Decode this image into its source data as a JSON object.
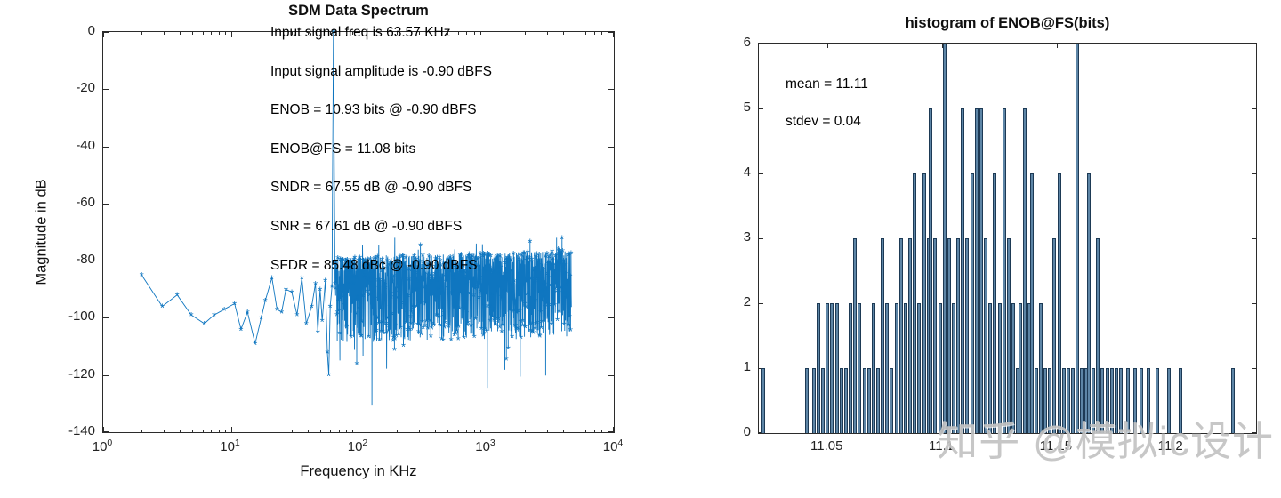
{
  "watermark": {
    "text": "知乎 @模拟ic设计"
  },
  "colors": {
    "spectrum_line": "#0f76c0",
    "hist_fill": "#5d85a6",
    "hist_edge": "#1d3a55",
    "axis": "#2b2b2b",
    "watermark": "#c3c3c3"
  },
  "chart_data": [
    {
      "type": "line",
      "title": "SDM Data Spectrum",
      "xlabel": "Frequency in KHz",
      "ylabel": "Magnitude in dB",
      "x_scale": "log",
      "xlim_khz": [
        1,
        10000
      ],
      "ylim_db": [
        -140,
        0
      ],
      "xticks_pow10_exponents": [
        0,
        1,
        2,
        3,
        4
      ],
      "yticks_db": [
        0,
        -20,
        -40,
        -60,
        -80,
        -100,
        -120,
        -140
      ],
      "marker": "*",
      "grid": false,
      "annotations": [
        "Input signal freq is 63.57 KHz",
        "Input signal amplitude is -0.90 dBFS",
        "ENOB = 10.93 bits @ -0.90 dBFS",
        "ENOB@FS = 11.08 bits",
        "SNDR = 67.55 dB @ -0.90 dBFS",
        "SNR = 67.61 dB @ -0.90 dBFS",
        "SFDR = 85.48 dBc @ -0.90 dBFS"
      ],
      "signal_peak": {
        "freq_khz": 63.57,
        "magnitude_db": 0
      },
      "low_freq_points_khz_db": [
        [
          2.0,
          -85
        ],
        [
          2.9,
          -96
        ],
        [
          3.8,
          -92
        ],
        [
          4.9,
          -99
        ],
        [
          6.2,
          -102
        ],
        [
          7.4,
          -99
        ],
        [
          8.9,
          -97
        ],
        [
          10.7,
          -95
        ],
        [
          12.0,
          -104
        ],
        [
          13.5,
          -98
        ],
        [
          15.5,
          -109
        ],
        [
          17.3,
          -100
        ],
        [
          18.6,
          -94
        ],
        [
          21,
          -86
        ],
        [
          23,
          -97
        ],
        [
          25,
          -98
        ],
        [
          27,
          -90
        ],
        [
          30,
          -91
        ],
        [
          33,
          -99
        ],
        [
          36,
          -86
        ],
        [
          39,
          -102
        ],
        [
          43,
          -96
        ],
        [
          46,
          -88
        ],
        [
          48,
          -105
        ],
        [
          50,
          -90
        ],
        [
          52,
          -101
        ],
        [
          55,
          -87
        ],
        [
          57,
          -112
        ],
        [
          58.5,
          -120
        ],
        [
          60,
          -96
        ],
        [
          62,
          -89
        ]
      ],
      "post_peak_point_khz_db": [
        65.5,
        -88
      ],
      "noise_band": {
        "f_start_khz": 66,
        "f_end_khz": 4650,
        "top_db": -79,
        "typical_bottom_db": -110,
        "deep_dip_floor_db": -135,
        "n_points": 1500,
        "seed": 11
      }
    },
    {
      "type": "bar",
      "title": "histogram of ENOB@FS(bits)",
      "xlabel": "",
      "ylabel": "",
      "xlim": [
        11.02,
        11.237
      ],
      "ylim": [
        0,
        6
      ],
      "xticks": [
        11.05,
        11.1,
        11.15,
        11.2
      ],
      "yticks": [
        0,
        1,
        2,
        3,
        4,
        5,
        6
      ],
      "grid": false,
      "annotations": [
        "mean = 11.11",
        "stdev = 0.04"
      ],
      "mean": 11.11,
      "stdev": 0.04,
      "bars_value_count": [
        [
          11.022,
          1
        ],
        [
          11.041,
          1
        ],
        [
          11.044,
          1
        ],
        [
          11.046,
          2
        ],
        [
          11.048,
          1
        ],
        [
          11.05,
          2
        ],
        [
          11.052,
          2
        ],
        [
          11.054,
          2
        ],
        [
          11.056,
          1
        ],
        [
          11.058,
          1
        ],
        [
          11.06,
          2
        ],
        [
          11.062,
          3
        ],
        [
          11.064,
          2
        ],
        [
          11.066,
          1
        ],
        [
          11.068,
          1
        ],
        [
          11.07,
          2
        ],
        [
          11.072,
          1
        ],
        [
          11.074,
          3
        ],
        [
          11.076,
          2
        ],
        [
          11.078,
          1
        ],
        [
          11.08,
          2
        ],
        [
          11.082,
          3
        ],
        [
          11.084,
          2
        ],
        [
          11.086,
          3
        ],
        [
          11.088,
          4
        ],
        [
          11.09,
          2
        ],
        [
          11.092,
          4
        ],
        [
          11.094,
          3
        ],
        [
          11.095,
          5
        ],
        [
          11.097,
          3
        ],
        [
          11.099,
          2
        ],
        [
          11.101,
          6
        ],
        [
          11.103,
          3
        ],
        [
          11.105,
          2
        ],
        [
          11.107,
          3
        ],
        [
          11.109,
          5
        ],
        [
          11.111,
          3
        ],
        [
          11.113,
          4
        ],
        [
          11.115,
          5
        ],
        [
          11.117,
          5
        ],
        [
          11.119,
          3
        ],
        [
          11.121,
          2
        ],
        [
          11.123,
          4
        ],
        [
          11.125,
          2
        ],
        [
          11.127,
          5
        ],
        [
          11.129,
          3
        ],
        [
          11.131,
          2
        ],
        [
          11.133,
          1
        ],
        [
          11.134,
          2
        ],
        [
          11.136,
          5
        ],
        [
          11.138,
          2
        ],
        [
          11.139,
          4
        ],
        [
          11.141,
          1
        ],
        [
          11.143,
          2
        ],
        [
          11.145,
          1
        ],
        [
          11.147,
          1
        ],
        [
          11.149,
          3
        ],
        [
          11.151,
          4
        ],
        [
          11.153,
          1
        ],
        [
          11.155,
          1
        ],
        [
          11.157,
          1
        ],
        [
          11.159,
          6
        ],
        [
          11.161,
          1
        ],
        [
          11.163,
          1
        ],
        [
          11.164,
          4
        ],
        [
          11.166,
          1
        ],
        [
          11.168,
          3
        ],
        [
          11.17,
          1
        ],
        [
          11.172,
          1
        ],
        [
          11.174,
          1
        ],
        [
          11.176,
          1
        ],
        [
          11.178,
          1
        ],
        [
          11.181,
          1
        ],
        [
          11.184,
          1
        ],
        [
          11.187,
          1
        ],
        [
          11.19,
          1
        ],
        [
          11.194,
          1
        ],
        [
          11.199,
          1
        ],
        [
          11.204,
          1
        ],
        [
          11.227,
          1
        ]
      ]
    }
  ]
}
